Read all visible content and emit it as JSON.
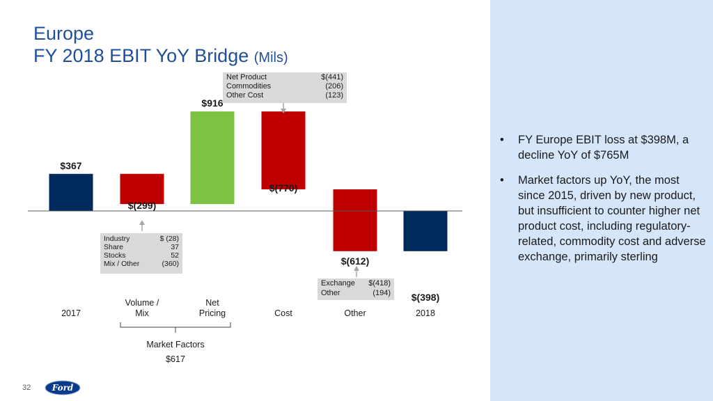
{
  "title": {
    "line1": "Europe",
    "line2": "FY 2018 EBIT YoY Bridge",
    "unit": "(Mils)"
  },
  "chart_data": {
    "type": "bar",
    "subtype": "waterfall",
    "categories": [
      "2017",
      "Volume / Mix",
      "Net Pricing",
      "Cost",
      "Other",
      "2018"
    ],
    "values": [
      367,
      -299,
      916,
      -770,
      -612,
      -398
    ],
    "value_labels": [
      "$367",
      "$(299)",
      "$916",
      "$(770)",
      "$(612)",
      "$(398)"
    ],
    "colors": [
      "#002a5c",
      "#c00000",
      "#7dc242",
      "#c00000",
      "#c00000",
      "#002a5c"
    ],
    "category_lines": [
      [
        "",
        "2017"
      ],
      [
        "Volume /",
        "Mix"
      ],
      [
        "Net",
        "Pricing"
      ],
      [
        "",
        "Cost"
      ],
      [
        "",
        "Other"
      ],
      [
        "",
        "2018"
      ]
    ]
  },
  "callouts": {
    "cost": [
      {
        "label": "Net Product",
        "value": "$(441)"
      },
      {
        "label": "Commodities",
        "value": "(206)"
      },
      {
        "label": "Other Cost",
        "value": "(123)"
      }
    ],
    "volume": [
      {
        "label": "Industry",
        "value": "$  (28)"
      },
      {
        "label": "Share",
        "value": "37"
      },
      {
        "label": "Stocks",
        "value": "52"
      },
      {
        "label": "Mix / Other",
        "value": "(360)"
      }
    ],
    "other": [
      {
        "label": "Exchange",
        "value": "$(418)"
      },
      {
        "label": "Other",
        "value": "(194)"
      }
    ]
  },
  "market_factors": {
    "label": "Market Factors",
    "value": "$617"
  },
  "bullets": [
    "FY Europe EBIT loss at $398M, a decline YoY of $765M",
    "Market factors up YoY, the most since 2015, driven by new product, but insufficient to counter higher net product cost, including regulatory-related, commodity cost and adverse exchange, primarily sterling"
  ],
  "bullet_glyph": "•",
  "page_number": "32",
  "logo_text": "Ford",
  "colors": {
    "title": "#1f4f99",
    "panel": "#d5e6fa",
    "navy": "#002a5c",
    "red": "#c00000",
    "green": "#7dc242"
  }
}
